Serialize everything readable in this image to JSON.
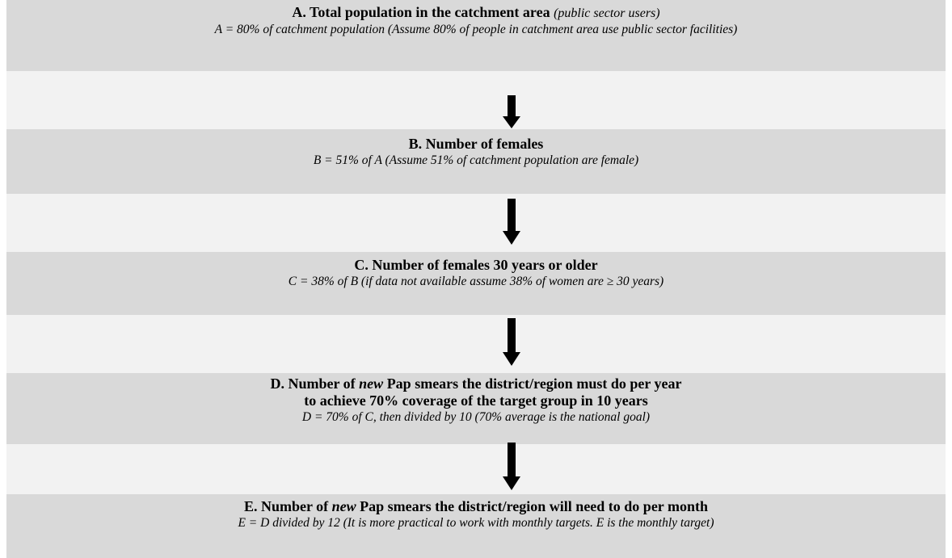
{
  "nodes": [
    {
      "title": [
        "A. Total population in the catchment area"
      ],
      "note": "(public sector users)",
      "formula": "A = 80% of catchment population (Assume 80% of people in catchment area use public sector facilities)"
    },
    {
      "title": [
        "B. Number of females"
      ],
      "formula": "B = 51% of A (Assume 51% of catchment population are female)"
    },
    {
      "title": [
        "C. Number of females 30 years or older"
      ],
      "formula": "C = 38% of B (if data not available assume 38% of women are ≥ 30 years)"
    },
    {
      "title": [
        "D. Number of",
        "new",
        "Pap smears the district/region must do per year",
        "to achieve 70% coverage of the target group in 10 years"
      ],
      "formula": "D = 70% of C, then divided by 10 (70% average is the national goal)"
    },
    {
      "title": [
        "E. Number of",
        "new",
        "Pap smears the district/region will need to do per month"
      ],
      "formula": "E = D divided by 12 (It is more practical to work with monthly targets. E is the monthly target)"
    }
  ]
}
